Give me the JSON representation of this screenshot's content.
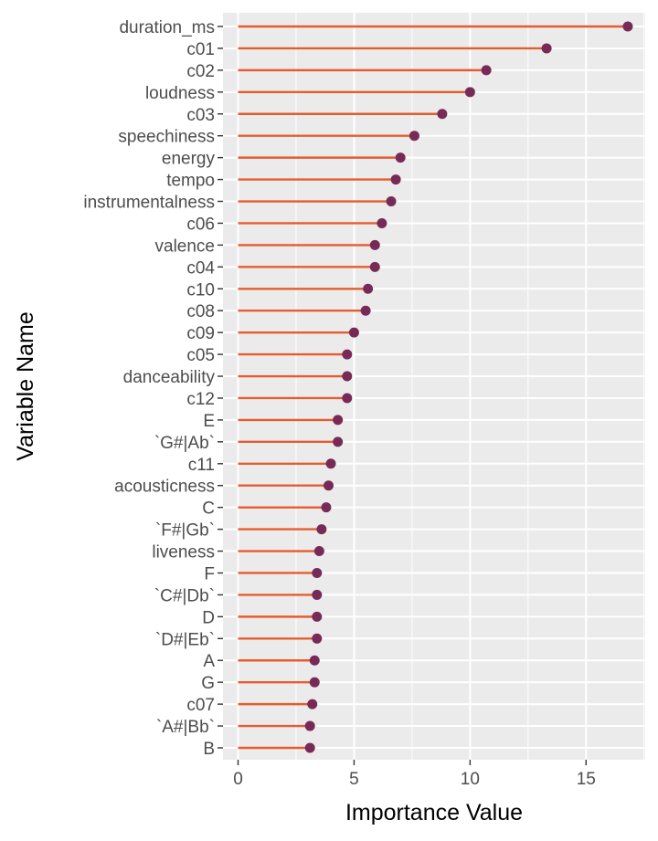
{
  "chart_data": {
    "type": "lollipop",
    "orientation": "horizontal",
    "xlabel": "Importance Value",
    "ylabel": "Variable Name",
    "xlim": [
      -0.65,
      17.55
    ],
    "x_ticks": [
      0,
      5,
      10,
      15
    ],
    "x_tick_labels": [
      "0",
      "5",
      "10",
      "15"
    ],
    "grid": true,
    "colors": {
      "panel_background": "#ebebeb",
      "grid": "#ffffff",
      "stem": "#e65c2e",
      "point": "#782a57",
      "tick_text": "#4d4d4d",
      "axis_title": "#000000"
    },
    "categories": [
      "duration_ms",
      "c01",
      "c02",
      "loudness",
      "c03",
      "speechiness",
      "energy",
      "tempo",
      "instrumentalness",
      "c06",
      "valence",
      "c04",
      "c10",
      "c08",
      "c09",
      "c05",
      "danceability",
      "c12",
      "E",
      "`G#|Ab`",
      "c11",
      "acousticness",
      "C",
      "`F#|Gb`",
      "liveness",
      "F",
      "`C#|Db`",
      "D",
      "`D#|Eb`",
      "A",
      "G",
      "c07",
      "`A#|Bb`",
      "B"
    ],
    "values": [
      16.8,
      13.3,
      10.7,
      10.0,
      8.8,
      7.6,
      7.0,
      6.8,
      6.6,
      6.2,
      5.9,
      5.9,
      5.6,
      5.5,
      5.0,
      4.7,
      4.7,
      4.7,
      4.3,
      4.3,
      4.0,
      3.9,
      3.8,
      3.6,
      3.5,
      3.4,
      3.4,
      3.4,
      3.4,
      3.3,
      3.3,
      3.2,
      3.1,
      3.1
    ]
  }
}
